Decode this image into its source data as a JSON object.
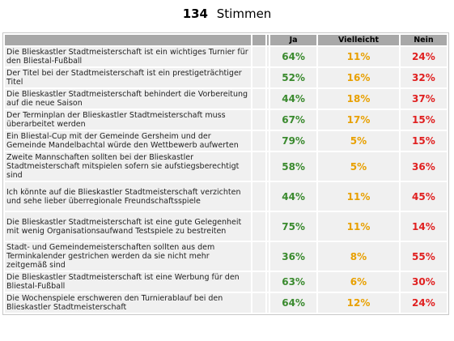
{
  "votes": {
    "count": "134",
    "label": "Stimmen"
  },
  "columns": {
    "ja": "Ja",
    "vielleicht": "Vielleicht",
    "nein": "Nein"
  },
  "rows": [
    {
      "q": "Die Blieskastler Stadtmeisterschaft ist ein wichtiges Turnier für den Bliestal-Fußball",
      "ja": "64%",
      "vielleicht": "11%",
      "nein": "24%"
    },
    {
      "q": "Der Titel bei der Stadtmeisterschaft ist ein prestigeträchtiger Titel",
      "ja": "52%",
      "vielleicht": "16%",
      "nein": "32%"
    },
    {
      "q": "Die Blieskastler Stadtmeisterschaft behindert die Vorbereitung auf die neue Saison",
      "ja": "44%",
      "vielleicht": "18%",
      "nein": "37%"
    },
    {
      "q": "Der Terminplan der Blieskastler Stadtmeisterschaft muss überarbeitet werden",
      "ja": "67%",
      "vielleicht": "17%",
      "nein": "15%"
    },
    {
      "q": "Ein Bliestal-Cup mit der Gemeinde Gersheim und der Gemeinde Mandelbachtal würde den Wettbewerb aufwerten",
      "ja": "79%",
      "vielleicht": "5%",
      "nein": "15%"
    },
    {
      "q": "Zweite Mannschaften sollten bei der Blieskastler Stadtmeisterschaft mitspielen sofern sie aufstiegsberechtigt sind",
      "ja": "58%",
      "vielleicht": "5%",
      "nein": "36%"
    },
    {
      "q": "Ich könnte auf die Blieskastler Stadtmeisterschaft verzichten und sehe lieber überregionale Freundschaftsspiele",
      "ja": "44%",
      "vielleicht": "11%",
      "nein": "45%"
    },
    {
      "q": "Die Blieskastler Stadtmeisterschaft ist eine gute Gelegenheit mit wenig Organisationsaufwand Testspiele zu bestreiten",
      "ja": "75%",
      "vielleicht": "11%",
      "nein": "14%"
    },
    {
      "q": "Stadt- und Gemeindemeisterschaften sollten aus dem Terminkalender gestrichen werden da sie nicht mehr zeitgemäß sind",
      "ja": "36%",
      "vielleicht": "8%",
      "nein": "55%"
    },
    {
      "q": "Die Blieskastler Stadtmeisterschaft ist eine Werbung für den Bliestal-Fußball",
      "ja": "63%",
      "vielleicht": "6%",
      "nein": "30%"
    },
    {
      "q": "Die Wochenspiele erschweren den Turnierablauf bei den Blieskastler Stadtmeisterschaft",
      "ja": "64%",
      "vielleicht": "12%",
      "nein": "24%"
    }
  ]
}
